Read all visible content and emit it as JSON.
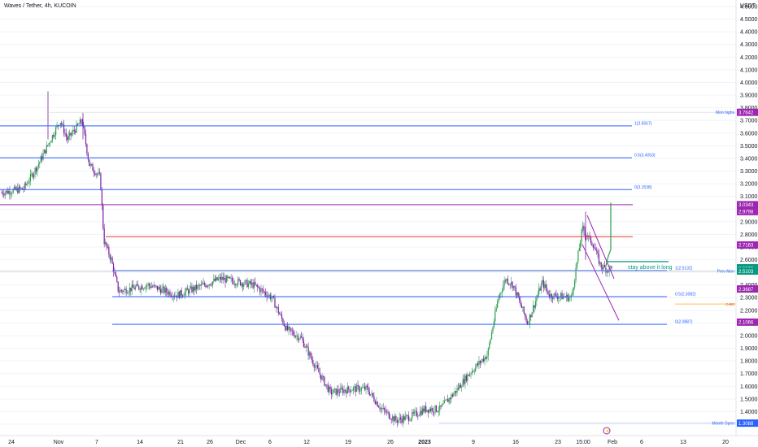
{
  "header": {
    "symbol_title": "Waves / Tether, 4h, KUCOIN",
    "currency": "USDT"
  },
  "chart_data": {
    "type": "candlestick",
    "title": "Waves / Tether, 4h, KUCOIN",
    "ylabel": "USDT",
    "ylim": [
      1.25,
      4.65
    ],
    "y_ticks": [
      1.3,
      1.4,
      1.5,
      1.6,
      1.7,
      1.8,
      1.9,
      2.0,
      2.1,
      2.2,
      2.3,
      2.4,
      2.5,
      2.6,
      2.7,
      2.8,
      2.9,
      3.0,
      3.1,
      3.2,
      3.3,
      3.4,
      3.5,
      3.6,
      3.7,
      3.8,
      3.9,
      4.0,
      4.1,
      4.2,
      4.3,
      4.4,
      4.5,
      4.6
    ],
    "x_ticks": [
      "24",
      "Nov",
      "7",
      "14",
      "21",
      "26",
      "Dec",
      "6",
      "12",
      "19",
      "26",
      "2023",
      "9",
      "16",
      "23",
      "15:00",
      "Feb",
      "6",
      "13",
      "20"
    ],
    "price_path": [
      [
        0,
        3.13
      ],
      [
        0.03,
        3.16
      ],
      [
        0.05,
        3.35
      ],
      [
        0.08,
        3.7
      ],
      [
        0.09,
        3.55
      ],
      [
        0.11,
        3.7
      ],
      [
        0.12,
        3.35
      ],
      [
        0.135,
        3.25
      ],
      [
        0.14,
        2.75
      ],
      [
        0.15,
        2.6
      ],
      [
        0.16,
        2.35
      ],
      [
        0.2,
        2.4
      ],
      [
        0.24,
        2.32
      ],
      [
        0.3,
        2.45
      ],
      [
        0.345,
        2.4
      ],
      [
        0.37,
        2.3
      ],
      [
        0.39,
        2.05
      ],
      [
        0.41,
        1.98
      ],
      [
        0.43,
        1.75
      ],
      [
        0.45,
        1.55
      ],
      [
        0.48,
        1.58
      ],
      [
        0.5,
        1.58
      ],
      [
        0.52,
        1.42
      ],
      [
        0.54,
        1.33
      ],
      [
        0.56,
        1.36
      ],
      [
        0.58,
        1.42
      ],
      [
        0.6,
        1.42
      ],
      [
        0.62,
        1.55
      ],
      [
        0.64,
        1.7
      ],
      [
        0.665,
        1.85
      ],
      [
        0.68,
        2.3
      ],
      [
        0.69,
        2.45
      ],
      [
        0.7,
        2.4
      ],
      [
        0.72,
        2.1
      ],
      [
        0.74,
        2.42
      ],
      [
        0.75,
        2.32
      ],
      [
        0.78,
        2.3
      ],
      [
        0.795,
        2.85
      ],
      [
        0.8,
        2.8
      ],
      [
        0.81,
        2.72
      ],
      [
        0.82,
        2.55
      ],
      [
        0.83,
        2.52
      ],
      [
        0.835,
        2.55
      ]
    ],
    "fib_levels": [
      {
        "label": "1(3.6567)",
        "value": 3.6567,
        "color": "#2962ff"
      },
      {
        "label": "0.5(3.4053)",
        "value": 3.4053,
        "color": "#2962ff"
      },
      {
        "label": "0(3.1538)",
        "value": 3.1538,
        "color": "#2962ff"
      },
      {
        "label": "1(2.5132)",
        "value": 2.5132,
        "color": "#2962ff"
      },
      {
        "label": "0.5(2.3082)",
        "value": 2.3082,
        "color": "#2962ff"
      },
      {
        "label": "0(2.0887)",
        "value": 2.0887,
        "color": "#2962ff"
      }
    ],
    "horizontal_lines": [
      {
        "name": "magenta-resistance",
        "value": 3.0343,
        "color": "#9c27b0"
      },
      {
        "name": "red-resistance",
        "value": 2.7815,
        "color": "#e53935"
      },
      {
        "name": "prev-mon",
        "value": 2.51,
        "color": "#2962ff"
      },
      {
        "name": "green-stay-above",
        "value": 2.585,
        "color": "#089981"
      }
    ],
    "price_tags": [
      {
        "label": "3.7642",
        "value": 3.7642,
        "color": "#9c27b0"
      },
      {
        "label": "3.0343",
        "value": 3.0343,
        "color": "#9c27b0"
      },
      {
        "label": "2.9798",
        "value": 2.9798,
        "color": "#9c27b0"
      },
      {
        "label": "2.7163",
        "value": 2.7163,
        "color": "#9c27b0"
      },
      {
        "label": "2.5362",
        "value": 2.5362,
        "color": "#089981"
      },
      {
        "label": "2.5305",
        "value": 2.5305,
        "color": "#089981"
      },
      {
        "label": "2.5103",
        "value": 2.5103,
        "color": "#089981"
      },
      {
        "label": "2.3687",
        "value": 2.3687,
        "color": "#9c27b0"
      },
      {
        "label": "2.1066",
        "value": 2.1066,
        "color": "#9c27b0"
      },
      {
        "label": "1.3088",
        "value": 1.3088,
        "color": "#2962ff"
      }
    ],
    "annotations": [
      {
        "text": "Mon highs",
        "value": 3.7642
      },
      {
        "text": "Prev Mon",
        "value": 2.5103
      },
      {
        "text": "c-wo",
        "value": 2.25
      },
      {
        "text": "Month Open",
        "value": 1.3088
      },
      {
        "text": "stay above it long",
        "value": 2.54
      }
    ]
  }
}
